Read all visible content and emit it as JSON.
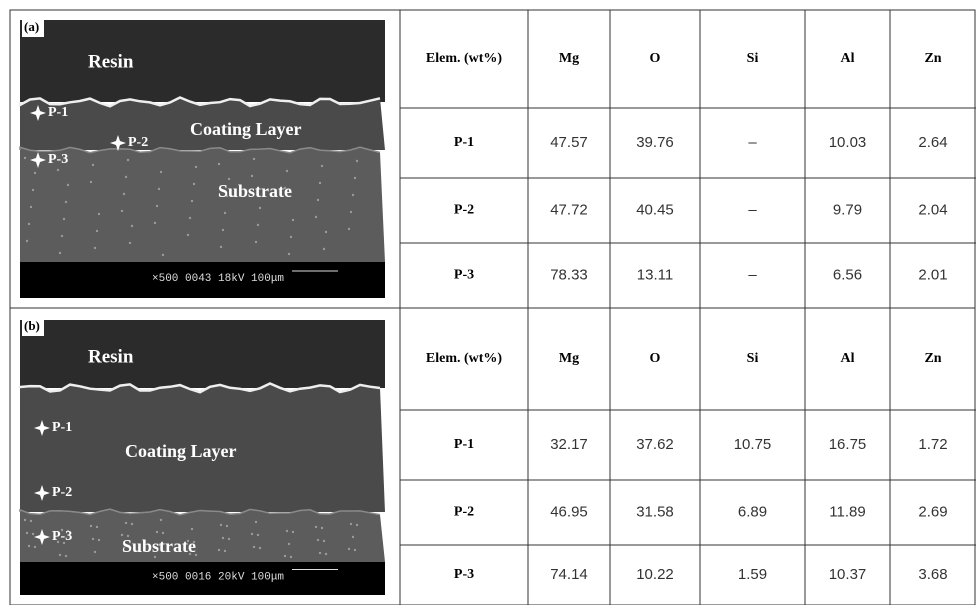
{
  "panels": [
    {
      "label": "(a)",
      "image": {
        "resin": "Resin",
        "coating": "Coating Layer",
        "substrate": "Substrate",
        "points": [
          "P-1",
          "P-2",
          "P-3"
        ],
        "scale_bar": "×500  0043  18kV 100μm"
      },
      "table": {
        "header": [
          "Elem. (wt%)",
          "Mg",
          "O",
          "Si",
          "Al",
          "Zn"
        ],
        "rows": [
          [
            "P-1",
            "47.57",
            "39.76",
            "–",
            "10.03",
            "2.64"
          ],
          [
            "P-2",
            "47.72",
            "40.45",
            "–",
            "9.79",
            "2.04"
          ],
          [
            "P-3",
            "78.33",
            "13.11",
            "–",
            "6.56",
            "2.01"
          ]
        ]
      }
    },
    {
      "label": "(b)",
      "image": {
        "resin": "Resin",
        "coating": "Coating Layer",
        "substrate": "Substrate",
        "points": [
          "P-1",
          "P-2",
          "P-3"
        ],
        "scale_bar": "×500  0016  20kV 100μm"
      },
      "table": {
        "header": [
          "Elem. (wt%)",
          "Mg",
          "O",
          "Si",
          "Al",
          "Zn"
        ],
        "rows": [
          [
            "P-1",
            "32.17",
            "37.62",
            "10.75",
            "16.75",
            "1.72"
          ],
          [
            "P-2",
            "46.95",
            "31.58",
            "6.89",
            "11.89",
            "2.69"
          ],
          [
            "P-3",
            "74.14",
            "10.22",
            "1.59",
            "10.37",
            "3.68"
          ]
        ]
      }
    }
  ]
}
